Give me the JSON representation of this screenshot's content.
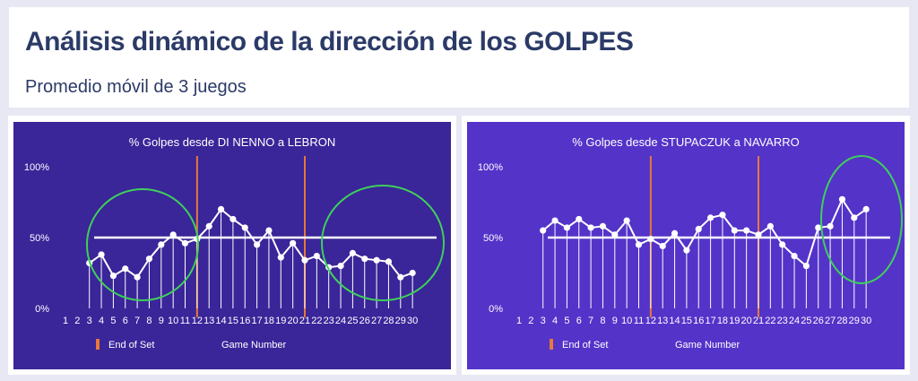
{
  "header": {
    "title": "Análisis dinámico de la dirección de los GOLPES",
    "subtitle": "Promedio móvil de 3 juegos"
  },
  "colors": {
    "left_background": "#3a2599",
    "right_background": "#5433c9",
    "series": "#ffffff",
    "end_of_set": "#e8783a",
    "highlight_circle": "#3fcf5a"
  },
  "chart_data": [
    {
      "type": "line",
      "title": "% Golpes desde DI NENNO a LEBRON",
      "xlabel": "Game Number",
      "ylabel": "",
      "categories": [
        "1",
        "2",
        "3",
        "4",
        "5",
        "6",
        "7",
        "8",
        "9",
        "10",
        "11",
        "12",
        "13",
        "14",
        "15",
        "16",
        "17",
        "18",
        "19",
        "20",
        "21",
        "22",
        "23",
        "24",
        "25",
        "26",
        "27",
        "28",
        "29",
        "30"
      ],
      "series": [
        {
          "values": [
            null,
            null,
            32,
            38,
            23,
            28,
            22,
            35,
            45,
            52,
            46,
            49,
            58,
            70,
            63,
            57,
            45,
            55,
            36,
            46,
            34,
            37,
            29,
            30,
            39,
            35,
            34,
            33,
            22,
            25
          ]
        }
      ],
      "average_line": 50,
      "end_of_set_markers": [
        12,
        21
      ],
      "legend": [
        "End of Set"
      ],
      "yticks": [
        "0%",
        "50%",
        "100%"
      ],
      "ylim": [
        0,
        100
      ],
      "grid": false
    },
    {
      "type": "line",
      "title": "% Golpes desde STUPACZUK a NAVARRO",
      "xlabel": "Game Number",
      "ylabel": "",
      "categories": [
        "1",
        "2",
        "3",
        "4",
        "5",
        "6",
        "7",
        "8",
        "9",
        "10",
        "11",
        "12",
        "13",
        "14",
        "15",
        "16",
        "17",
        "18",
        "19",
        "20",
        "21",
        "22",
        "23",
        "24",
        "25",
        "26",
        "27",
        "28",
        "29",
        "30"
      ],
      "series": [
        {
          "values": [
            null,
            null,
            55,
            62,
            57,
            63,
            57,
            58,
            52,
            62,
            45,
            49,
            44,
            53,
            41,
            56,
            64,
            66,
            55,
            55,
            52,
            58,
            45,
            37,
            30,
            57,
            58,
            77,
            64,
            70
          ]
        }
      ],
      "average_line": 50,
      "end_of_set_markers": [
        12,
        21
      ],
      "legend": [
        "End of Set"
      ],
      "yticks": [
        "0%",
        "50%",
        "100%"
      ],
      "ylim": [
        0,
        100
      ],
      "grid": false
    }
  ]
}
